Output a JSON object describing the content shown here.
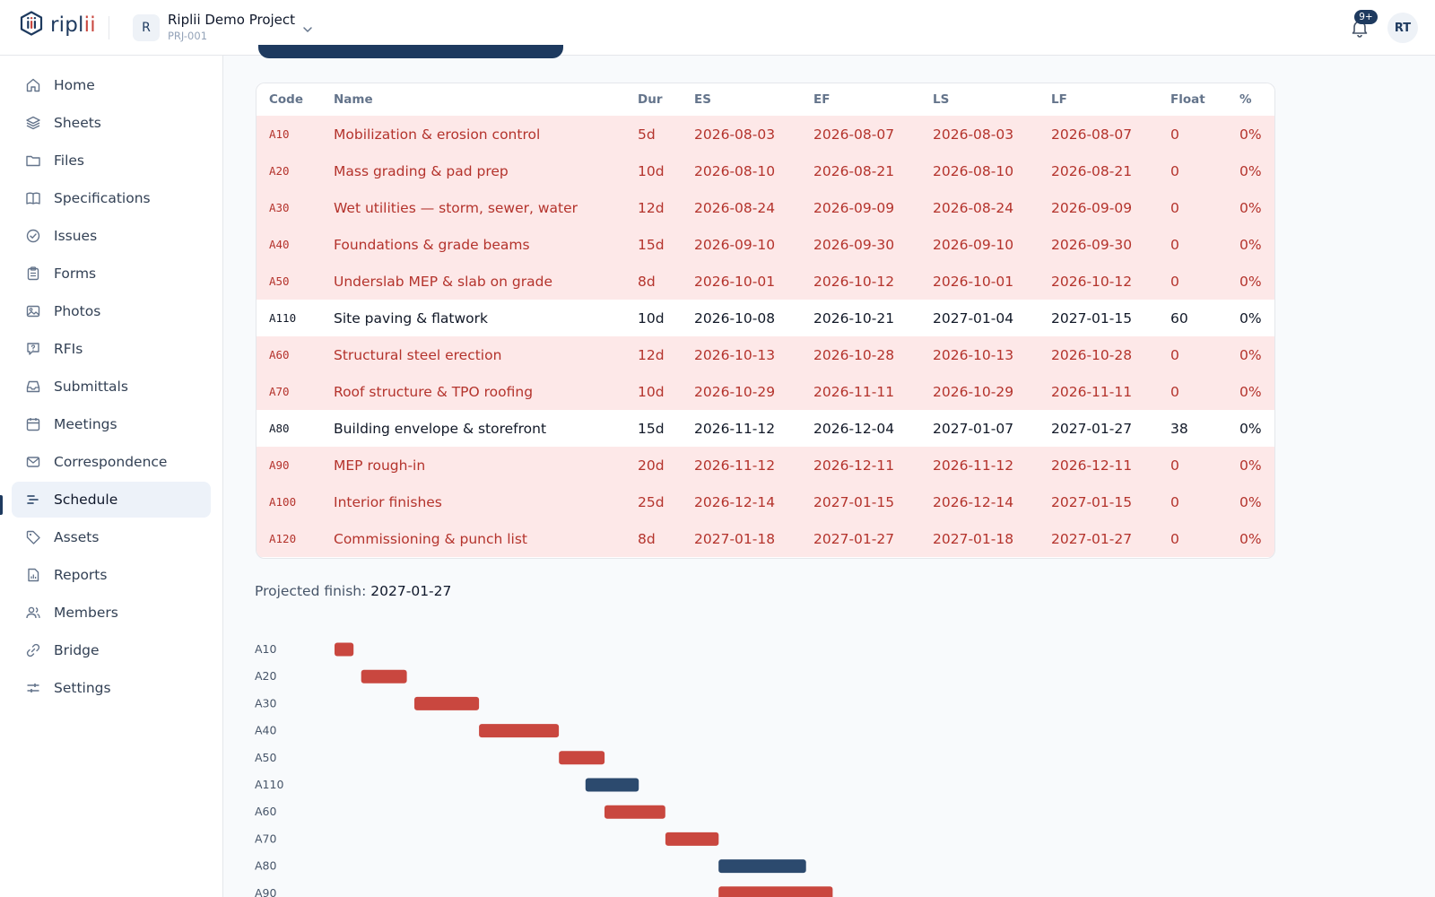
{
  "header": {
    "logo_main": "ripl",
    "logo_accent": "ii",
    "project_initial": "R",
    "project_name": "Riplii Demo Project",
    "project_code": "PRJ-001",
    "notifications_badge": "9+",
    "user_initials": "RT"
  },
  "sidebar": {
    "items": [
      {
        "label": "Home",
        "icon": "home-icon"
      },
      {
        "label": "Sheets",
        "icon": "layers-icon"
      },
      {
        "label": "Files",
        "icon": "folder-icon"
      },
      {
        "label": "Specifications",
        "icon": "book-icon"
      },
      {
        "label": "Issues",
        "icon": "check-circle-icon"
      },
      {
        "label": "Forms",
        "icon": "clipboard-icon"
      },
      {
        "label": "Photos",
        "icon": "image-icon"
      },
      {
        "label": "RFIs",
        "icon": "question-message-icon"
      },
      {
        "label": "Submittals",
        "icon": "inbox-icon"
      },
      {
        "label": "Meetings",
        "icon": "calendar-icon"
      },
      {
        "label": "Correspondence",
        "icon": "mail-icon"
      },
      {
        "label": "Schedule",
        "icon": "gantt-icon",
        "active": true
      },
      {
        "label": "Assets",
        "icon": "tag-icon"
      },
      {
        "label": "Reports",
        "icon": "report-icon"
      },
      {
        "label": "Members",
        "icon": "users-icon"
      },
      {
        "label": "Bridge",
        "icon": "link-icon"
      },
      {
        "label": "Settings",
        "icon": "sliders-icon"
      }
    ]
  },
  "schedule": {
    "columns": [
      "Code",
      "Name",
      "Dur",
      "ES",
      "EF",
      "LS",
      "LF",
      "Float",
      "%"
    ],
    "rows": [
      {
        "code": "A10",
        "name": "Mobilization & erosion control",
        "dur": "5d",
        "es": "2026-08-03",
        "ef": "2026-08-07",
        "ls": "2026-08-03",
        "lf": "2026-08-07",
        "float": "0",
        "pct": "0%",
        "critical": true
      },
      {
        "code": "A20",
        "name": "Mass grading & pad prep",
        "dur": "10d",
        "es": "2026-08-10",
        "ef": "2026-08-21",
        "ls": "2026-08-10",
        "lf": "2026-08-21",
        "float": "0",
        "pct": "0%",
        "critical": true
      },
      {
        "code": "A30",
        "name": "Wet utilities — storm, sewer, water",
        "dur": "12d",
        "es": "2026-08-24",
        "ef": "2026-09-09",
        "ls": "2026-08-24",
        "lf": "2026-09-09",
        "float": "0",
        "pct": "0%",
        "critical": true
      },
      {
        "code": "A40",
        "name": "Foundations & grade beams",
        "dur": "15d",
        "es": "2026-09-10",
        "ef": "2026-09-30",
        "ls": "2026-09-10",
        "lf": "2026-09-30",
        "float": "0",
        "pct": "0%",
        "critical": true
      },
      {
        "code": "A50",
        "name": "Underslab MEP & slab on grade",
        "dur": "8d",
        "es": "2026-10-01",
        "ef": "2026-10-12",
        "ls": "2026-10-01",
        "lf": "2026-10-12",
        "float": "0",
        "pct": "0%",
        "critical": true
      },
      {
        "code": "A110",
        "name": "Site paving & flatwork",
        "dur": "10d",
        "es": "2026-10-08",
        "ef": "2026-10-21",
        "ls": "2027-01-04",
        "lf": "2027-01-15",
        "float": "60",
        "pct": "0%",
        "critical": false
      },
      {
        "code": "A60",
        "name": "Structural steel erection",
        "dur": "12d",
        "es": "2026-10-13",
        "ef": "2026-10-28",
        "ls": "2026-10-13",
        "lf": "2026-10-28",
        "float": "0",
        "pct": "0%",
        "critical": true
      },
      {
        "code": "A70",
        "name": "Roof structure & TPO roofing",
        "dur": "10d",
        "es": "2026-10-29",
        "ef": "2026-11-11",
        "ls": "2026-10-29",
        "lf": "2026-11-11",
        "float": "0",
        "pct": "0%",
        "critical": true
      },
      {
        "code": "A80",
        "name": "Building envelope & storefront",
        "dur": "15d",
        "es": "2026-11-12",
        "ef": "2026-12-04",
        "ls": "2027-01-07",
        "lf": "2027-01-27",
        "float": "38",
        "pct": "0%",
        "critical": false
      },
      {
        "code": "A90",
        "name": "MEP rough-in",
        "dur": "20d",
        "es": "2026-11-12",
        "ef": "2026-12-11",
        "ls": "2026-11-12",
        "lf": "2026-12-11",
        "float": "0",
        "pct": "0%",
        "critical": true
      },
      {
        "code": "A100",
        "name": "Interior finishes",
        "dur": "25d",
        "es": "2026-12-14",
        "ef": "2027-01-15",
        "ls": "2026-12-14",
        "lf": "2027-01-15",
        "float": "0",
        "pct": "0%",
        "critical": true
      },
      {
        "code": "A120",
        "name": "Commissioning & punch list",
        "dur": "8d",
        "es": "2027-01-18",
        "ef": "2027-01-27",
        "ls": "2027-01-18",
        "lf": "2027-01-27",
        "float": "0",
        "pct": "0%",
        "critical": true
      }
    ],
    "projected_finish_label": "Projected finish:",
    "projected_finish_value": "2027-01-27"
  },
  "colors": {
    "critical": "#c9473f",
    "non_critical": "#2c4a6e",
    "accent": "#1e3a5f"
  },
  "chart_data": {
    "type": "bar",
    "orientation": "horizontal-gantt",
    "categories": [
      "A10",
      "A20",
      "A30",
      "A40",
      "A50",
      "A110",
      "A60",
      "A70",
      "A80",
      "A90"
    ],
    "start": [
      "2026-08-03",
      "2026-08-10",
      "2026-08-24",
      "2026-09-10",
      "2026-10-01",
      "2026-10-08",
      "2026-10-13",
      "2026-10-29",
      "2026-11-12",
      "2026-11-12"
    ],
    "finish": [
      "2026-08-07",
      "2026-08-21",
      "2026-09-09",
      "2026-09-30",
      "2026-10-12",
      "2026-10-21",
      "2026-10-28",
      "2026-11-11",
      "2026-12-04",
      "2026-12-11"
    ],
    "critical": [
      true,
      true,
      true,
      true,
      true,
      false,
      true,
      true,
      false,
      true
    ],
    "title": "",
    "xlabel": "",
    "ylabel": ""
  }
}
